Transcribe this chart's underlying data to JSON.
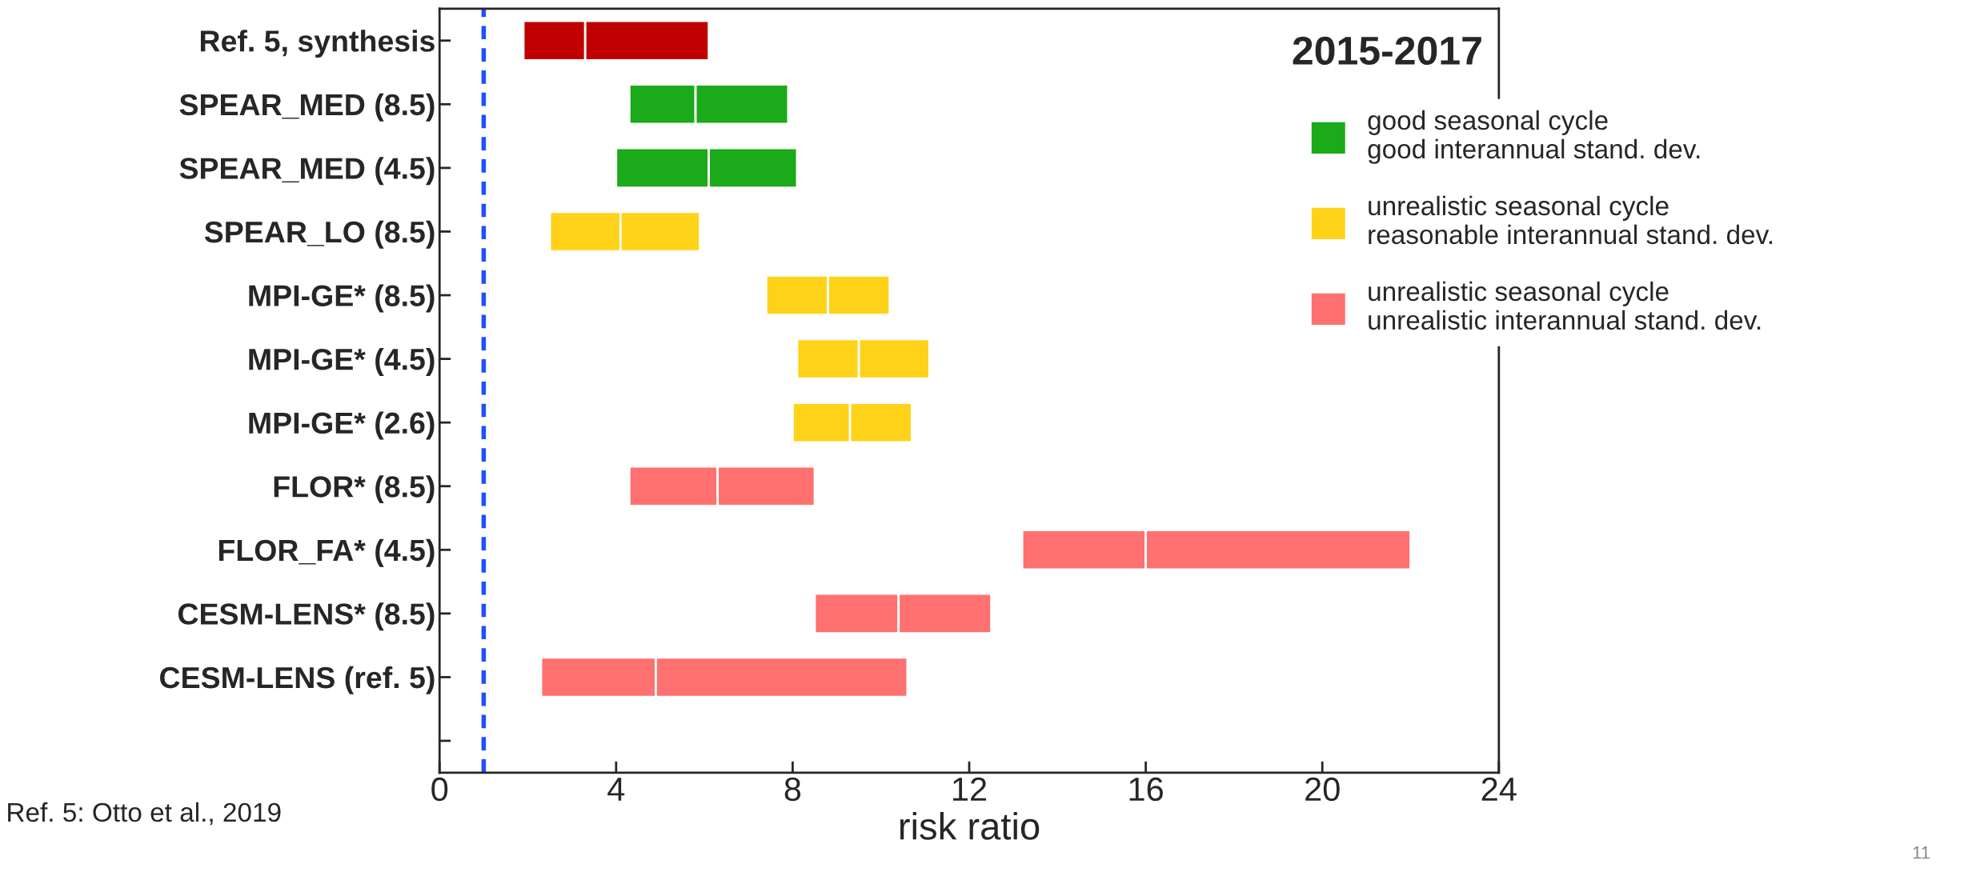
{
  "chart_data": {
    "type": "bar",
    "orientation": "horizontal",
    "title": "2015-2017",
    "xlabel": "risk ratio",
    "categories": [
      "Ref. 5, synthesis",
      "SPEAR_MED (8.5)",
      "SPEAR_MED (4.5)",
      "SPEAR_LO (8.5)",
      "MPI-GE* (8.5)",
      "MPI-GE* (4.5)",
      "MPI-GE* (2.6)",
      "FLOR* (8.5)",
      "FLOR_FA* (4.5)",
      "CESM-LENS* (8.5)",
      "CESM-LENS (ref. 5)",
      null
    ],
    "series": [
      {
        "color": "#c00000",
        "base": [
          1.9,
          null,
          null,
          null,
          null,
          null,
          null,
          null,
          null,
          null,
          null,
          null
        ],
        "values": [
          1.4,
          null,
          null,
          null,
          null,
          null,
          null,
          null,
          null,
          null,
          null,
          null
        ]
      },
      {
        "color": "#c00000",
        "base": [
          3.3,
          null,
          null,
          null,
          null,
          null,
          null,
          null,
          null,
          null,
          null,
          null
        ],
        "values": [
          2.8,
          null,
          null,
          null,
          null,
          null,
          null,
          null,
          null,
          null,
          null,
          null
        ]
      },
      {
        "name": "good seasonal cycle\ngood interannual stand. dev.",
        "color": "#1aaa1a",
        "base": [
          null,
          4.3,
          4.0,
          null,
          null,
          null,
          null,
          null,
          null,
          null,
          null,
          null
        ],
        "values": [
          null,
          1.5,
          2.1,
          null,
          null,
          null,
          null,
          null,
          null,
          null,
          null,
          null
        ]
      },
      {
        "color": "#1aaa1a",
        "base": [
          null,
          5.8,
          6.1,
          null,
          null,
          null,
          null,
          null,
          null,
          null,
          null,
          null
        ],
        "values": [
          null,
          2.1,
          2.0,
          null,
          null,
          null,
          null,
          null,
          null,
          null,
          null,
          null
        ]
      },
      {
        "name": "unrealistic seasonal cycle\nreasonable interannual stand. dev.",
        "color": "#ffd21a",
        "base": [
          null,
          null,
          null,
          2.5,
          7.4,
          8.1,
          8.0,
          null,
          null,
          null,
          null,
          null
        ],
        "values": [
          null,
          null,
          null,
          1.6,
          1.4,
          1.4,
          1.3,
          null,
          null,
          null,
          null,
          null
        ]
      },
      {
        "color": "#ffd21a",
        "base": [
          null,
          null,
          null,
          4.1,
          8.8,
          9.5,
          9.3,
          null,
          null,
          null,
          null,
          null
        ],
        "values": [
          null,
          null,
          null,
          1.8,
          1.4,
          1.6,
          1.4,
          null,
          null,
          null,
          null,
          null
        ]
      },
      {
        "name": "unrealistic seasonal cycle\nunrealistic interannual stand. dev.",
        "color": "#ff7070",
        "base": [
          null,
          null,
          null,
          null,
          null,
          null,
          null,
          4.3,
          13.2,
          8.5,
          2.3,
          null
        ],
        "values": [
          null,
          null,
          null,
          null,
          null,
          null,
          null,
          2.0,
          2.8,
          1.9,
          2.6,
          null
        ]
      },
      {
        "color": "#ff7070",
        "base": [
          null,
          null,
          null,
          null,
          null,
          null,
          null,
          6.3,
          16.0,
          10.4,
          4.9,
          null
        ],
        "values": [
          null,
          null,
          null,
          null,
          null,
          null,
          null,
          2.2,
          6.0,
          2.1,
          5.7,
          null
        ]
      }
    ],
    "xlim": [
      0,
      24
    ],
    "xticks": [
      0,
      4,
      8,
      12,
      16,
      20,
      24
    ],
    "ref_lines": [
      {
        "axis": "x",
        "value": 1,
        "color": "#1f4fff",
        "line_style": "dashed"
      }
    ],
    "legend": "right",
    "grid": false,
    "annotations": [
      "Ref. 5: Otto et al., 2019",
      "11"
    ]
  }
}
